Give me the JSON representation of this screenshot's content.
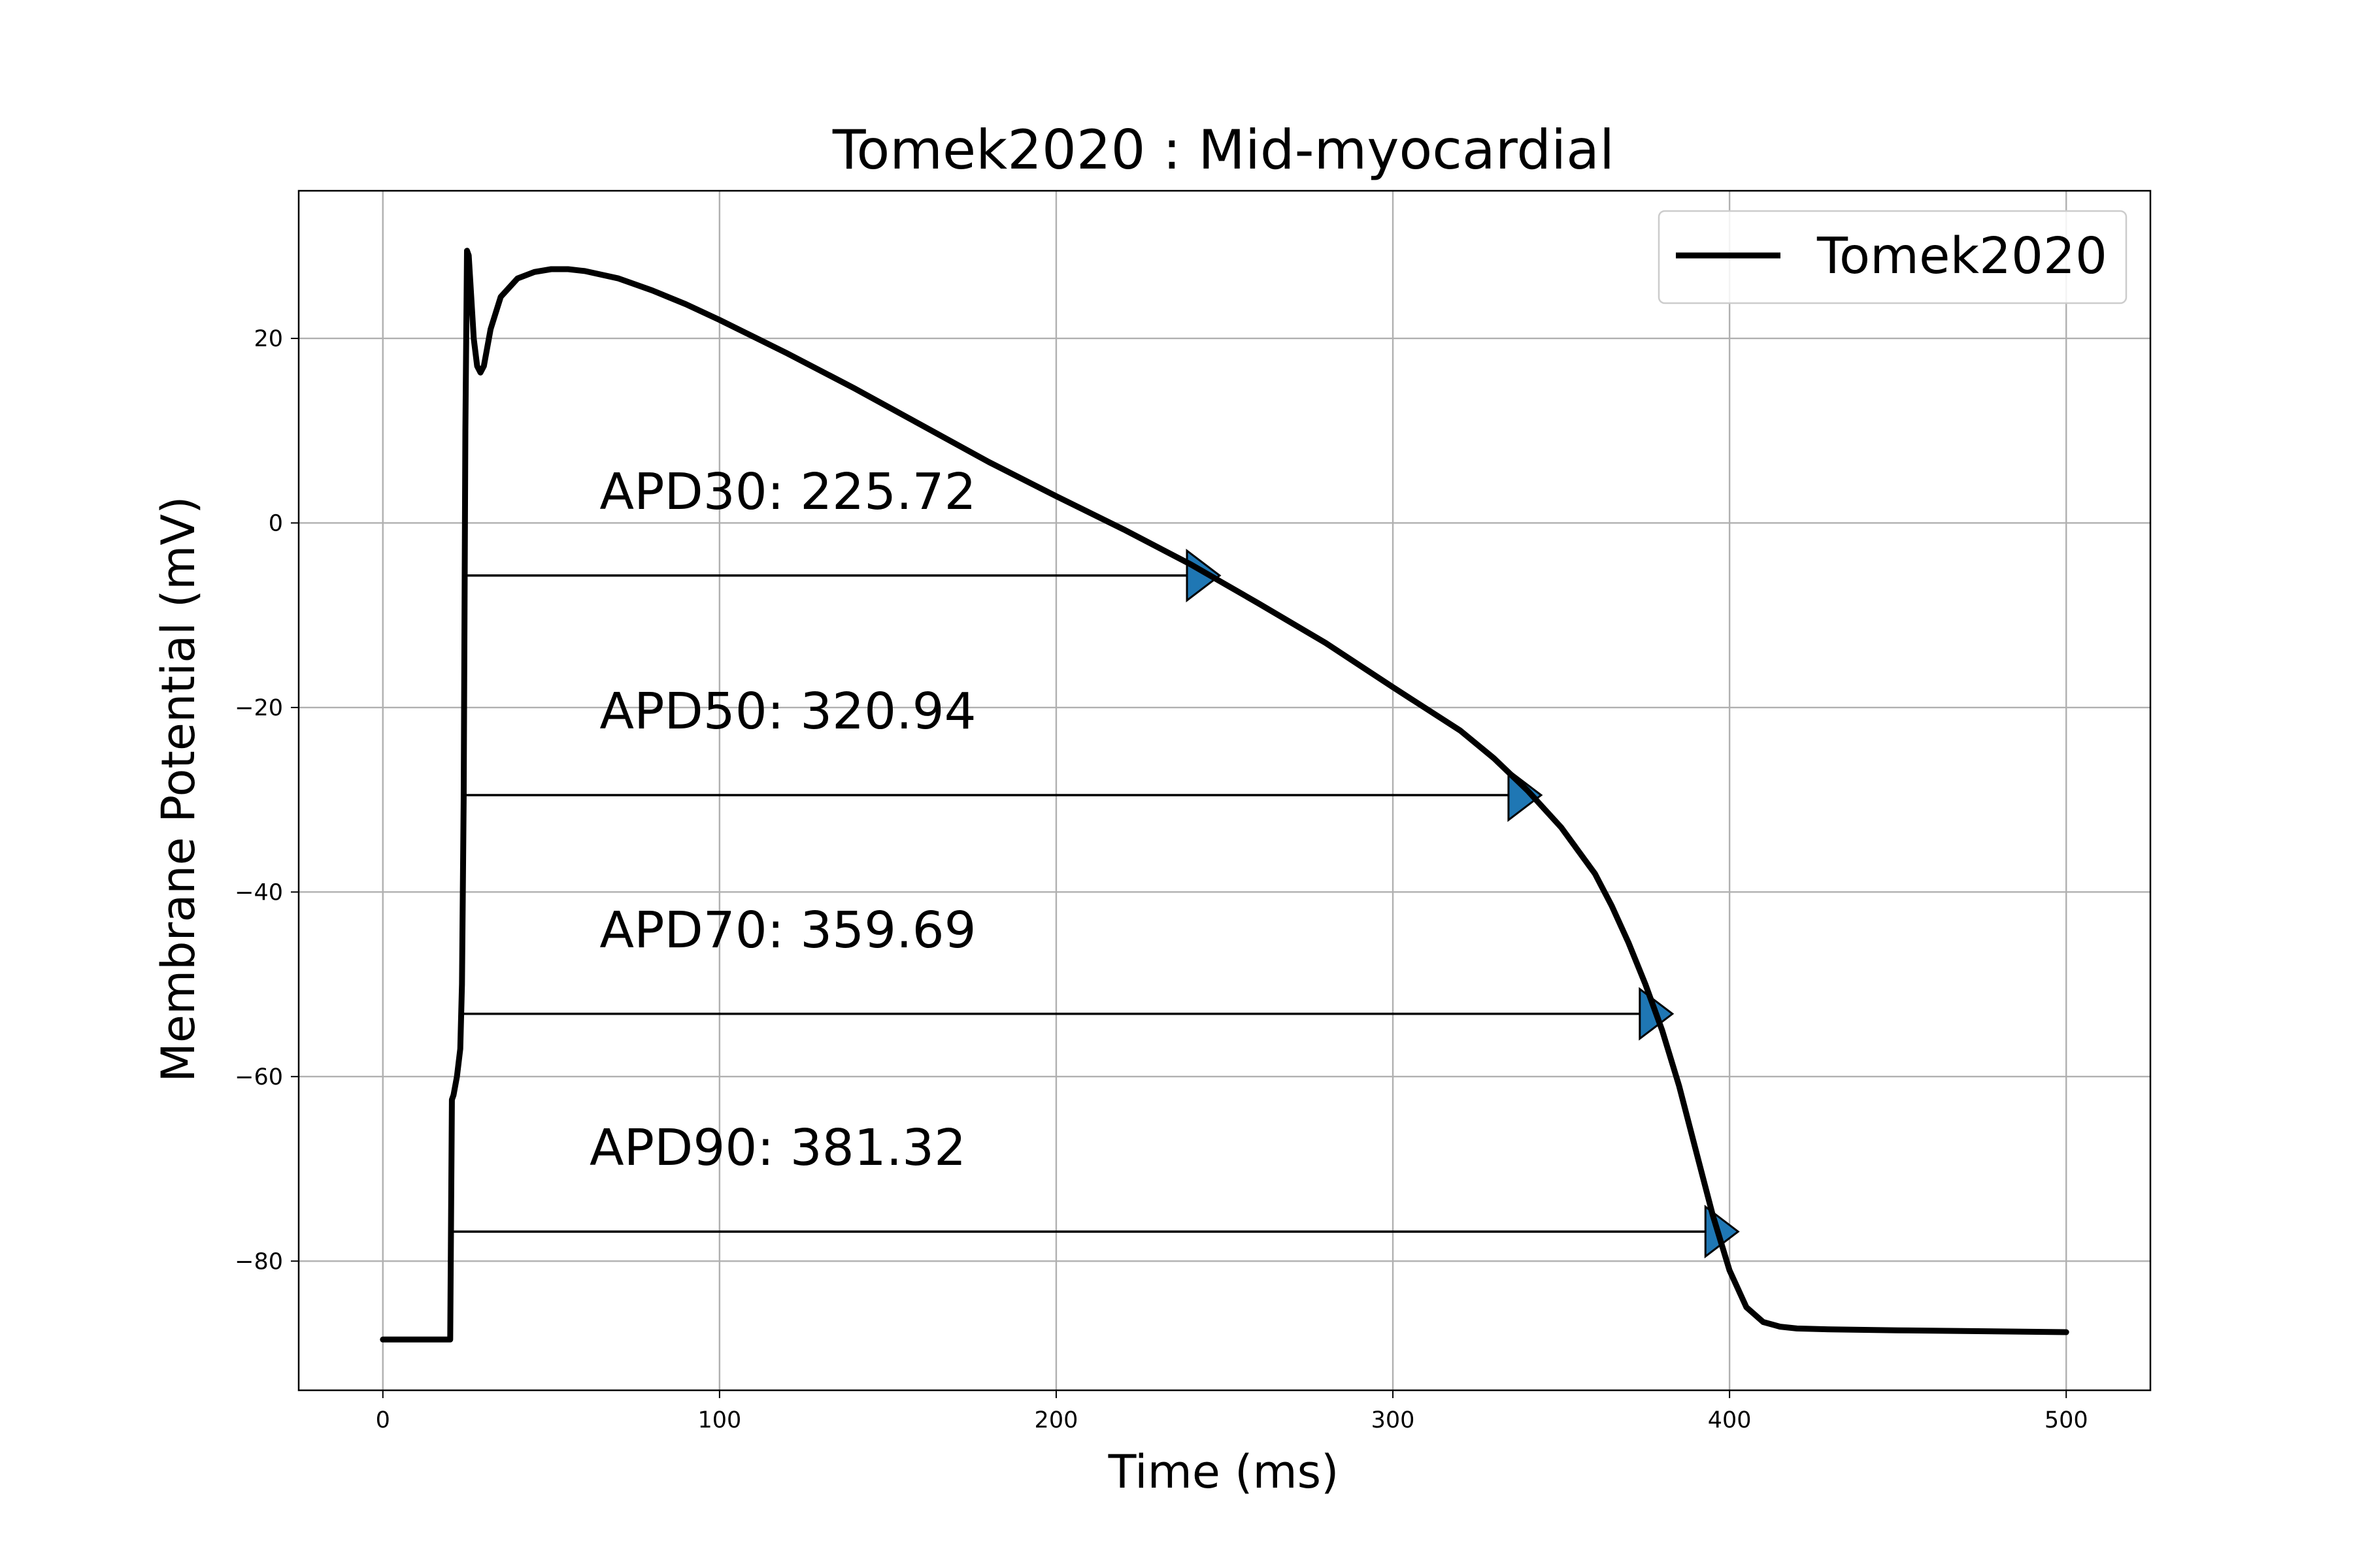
{
  "chart_data": {
    "type": "line",
    "title": "Tomek2020 : Mid-myocardial",
    "xlabel": "Time (ms)",
    "ylabel": "Membrane Potential (mV)",
    "xlim": [
      -25,
      525
    ],
    "ylim": [
      -94,
      36
    ],
    "xticks": [
      0,
      100,
      200,
      300,
      400,
      500
    ],
    "yticks": [
      -80,
      -60,
      -40,
      -20,
      0,
      20
    ],
    "xtick_labels": [
      "0",
      "100",
      "200",
      "300",
      "400",
      "500"
    ],
    "ytick_labels": [
      "−80",
      "−60",
      "−40",
      "−20",
      "0",
      "20"
    ],
    "grid": true,
    "legend": {
      "position": "top-right",
      "entries": [
        "Tomek2020"
      ]
    },
    "series": [
      {
        "name": "Tomek2020",
        "color": "#000000",
        "x": [
          0,
          20,
          20.5,
          21,
          22,
          23,
          23.5,
          24,
          24.5,
          25,
          25.5,
          26,
          27,
          28,
          29,
          30,
          32,
          35,
          40,
          45,
          50,
          55,
          60,
          70,
          80,
          90,
          100,
          120,
          140,
          160,
          180,
          200,
          220,
          240,
          260,
          280,
          300,
          320,
          330,
          340,
          350,
          360,
          365,
          370,
          375,
          380,
          385,
          390,
          395,
          400,
          405,
          410,
          415,
          420,
          430,
          450,
          500
        ],
        "y": [
          -88.5,
          -88.5,
          -62.5,
          -62,
          -60,
          -57,
          -50,
          -30,
          10,
          29.5,
          29,
          26,
          20,
          17,
          16.3,
          17,
          21,
          24.5,
          26.5,
          27.2,
          27.5,
          27.5,
          27.3,
          26.5,
          25.2,
          23.7,
          22,
          18.4,
          14.6,
          10.6,
          6.6,
          2.9,
          -0.7,
          -4.5,
          -8.7,
          -13,
          -17.8,
          -22.5,
          -25.5,
          -29,
          -33,
          -38,
          -41.5,
          -45.5,
          -50,
          -55,
          -61,
          -68,
          -75,
          -81,
          -85,
          -86.6,
          -87.1,
          -87.3,
          -87.4,
          -87.5,
          -87.7
        ]
      }
    ],
    "apd_markers": [
      {
        "label": "APD30",
        "value": "225.72",
        "start_x": 24,
        "end_x": 243.5,
        "y": -5.7
      },
      {
        "label": "APD50",
        "value": "320.94",
        "start_x": 24,
        "end_x": 339,
        "y": -29.5
      },
      {
        "label": "APD70",
        "value": "359.69",
        "start_x": 24,
        "end_x": 378,
        "y": -53.2
      },
      {
        "label": "APD90",
        "value": "381.32",
        "start_x": 21,
        "end_x": 397.5,
        "y": -76.8
      }
    ],
    "marker_color": "#1f77b4"
  }
}
